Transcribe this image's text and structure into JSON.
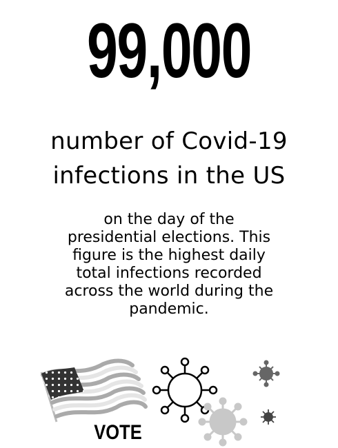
{
  "headline_number": "99,000",
  "headline_lines": [
    "number of Covid-19",
    "infections in the US"
  ],
  "body_lines": [
    "on the day of the",
    "presidential elections. This",
    "figure is the highest daily",
    "total infections recorded",
    "across the world during the",
    "pandemic."
  ],
  "flag": {
    "vote_label": "VOTE",
    "icon": "us-flag-icon"
  },
  "icons": [
    "us-flag-icon",
    "virus-outline-icon",
    "virus-small-icon",
    "virus-large-gray-icon",
    "virus-tiny-icon"
  ],
  "colors": {
    "text": "#000000",
    "virus_gray": "#c8c8c8",
    "virus_dark": "#555555"
  }
}
